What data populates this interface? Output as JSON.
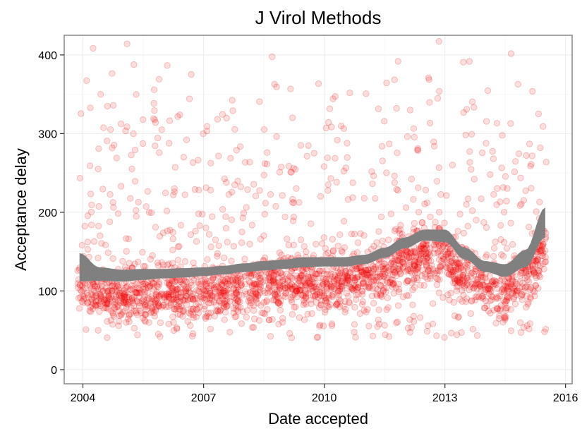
{
  "chart_data": {
    "type": "scatter",
    "title": "J Virol Methods",
    "xlabel": "Date accepted",
    "ylabel": "Acceptance delay",
    "xlim": [
      "2003-07-15",
      "2016-03-01"
    ],
    "ylim": [
      -18,
      425
    ],
    "x_ticks": [
      "2004",
      "2007",
      "2010",
      "2013",
      "2016"
    ],
    "x_tick_dates": [
      "2004-01-01",
      "2007-01-01",
      "2010-01-01",
      "2013-01-01",
      "2016-01-01"
    ],
    "y_ticks": [
      0,
      100,
      200,
      300,
      400
    ],
    "grid": true,
    "point_color": "#ff0000",
    "band_color": "#808080",
    "smooth": {
      "x": [
        "2003-12-01",
        "2004-06-01",
        "2005-01-01",
        "2005-07-01",
        "2006-01-01",
        "2006-07-01",
        "2007-01-01",
        "2007-07-01",
        "2008-01-01",
        "2008-07-01",
        "2009-01-01",
        "2009-07-01",
        "2010-01-01",
        "2010-07-01",
        "2011-01-01",
        "2011-07-01",
        "2012-01-01",
        "2012-07-01",
        "2013-01-01",
        "2013-07-01",
        "2014-01-01",
        "2014-07-01",
        "2015-01-01",
        "2015-07-01"
      ],
      "lower": [
        112,
        113,
        112,
        114,
        116,
        117,
        119,
        121,
        124,
        126,
        128,
        130,
        131,
        131,
        134,
        142,
        154,
        164,
        162,
        140,
        124,
        118,
        130,
        168
      ],
      "upper": [
        148,
        130,
        127,
        128,
        128,
        129,
        130,
        132,
        135,
        138,
        140,
        143,
        143,
        143,
        146,
        155,
        168,
        178,
        178,
        155,
        138,
        134,
        152,
        206
      ]
    },
    "scatter": {
      "n": 2600,
      "x_start": "2003-11-15",
      "x_end": "2015-07-10",
      "y_median": 110,
      "y_max": 425
    }
  }
}
